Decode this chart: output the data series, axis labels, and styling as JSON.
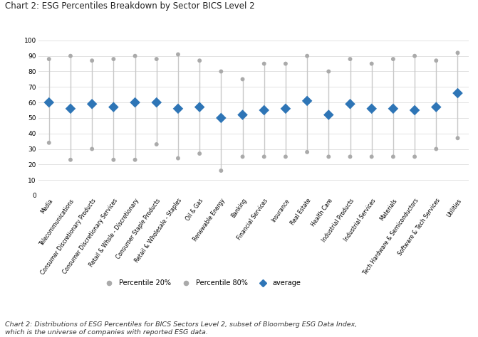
{
  "title": "Chart 2: ESG Percentiles Breakdown by Sector BICS Level 2",
  "caption": "Chart 2: Distributions of ESG Percentiles for BICS Sectors Level 2, subset of Bloomberg ESG Data Index,\nwhich is the universe of companies with reported ESG data.",
  "categories": [
    "Media",
    "Telecommunications",
    "Consumer Discretionary Products",
    "Consumer Discretionary Services",
    "Retail & Whsle - Discretionary",
    "Consumer Staple Products",
    "Retail & Wholesale - Staples",
    "Oil & Gas",
    "Renewable Energy",
    "Banking",
    "Financial Services",
    "Insurance",
    "Real Estate",
    "Health Care",
    "Industrial Products",
    "Industrial Services",
    "Materials",
    "Tech Hardware & Semiconductors",
    "Software & Tech Services",
    "Utilities"
  ],
  "p20": [
    34,
    23,
    30,
    23,
    23,
    33,
    24,
    27,
    16,
    25,
    25,
    25,
    28,
    25,
    25,
    25,
    25,
    25,
    30,
    37
  ],
  "p80": [
    88,
    90,
    87,
    88,
    90,
    88,
    91,
    87,
    80,
    75,
    85,
    85,
    90,
    80,
    88,
    85,
    88,
    90,
    87,
    92
  ],
  "avg": [
    60,
    56,
    59,
    57,
    60,
    60,
    56,
    57,
    50,
    52,
    55,
    56,
    61,
    52,
    59,
    56,
    56,
    55,
    57,
    66
  ],
  "p20_color": "#aaaaaa",
  "p80_color": "#aaaaaa",
  "avg_color": "#2e75b6",
  "line_color": "#c8c8c8",
  "background_color": "#ffffff",
  "ylim": [
    0,
    100
  ],
  "yticks": [
    0,
    10,
    20,
    30,
    40,
    50,
    60,
    70,
    80,
    90,
    100
  ]
}
